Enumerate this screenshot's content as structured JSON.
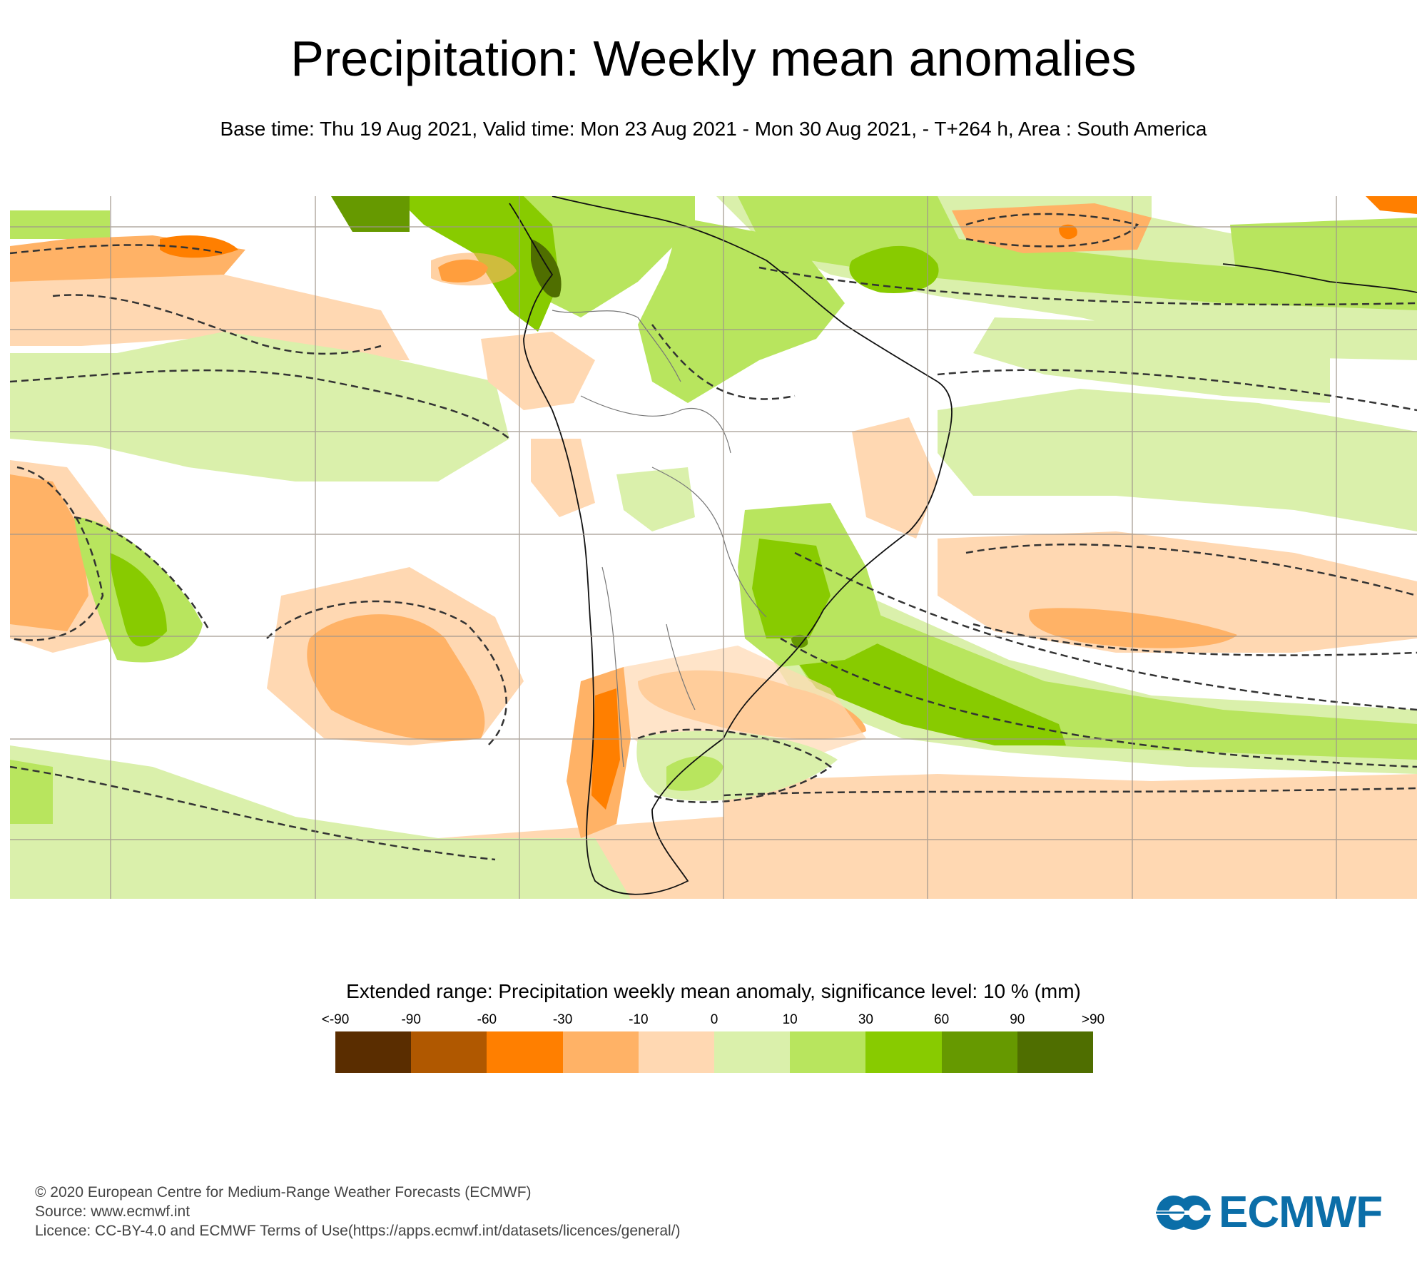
{
  "header": {
    "title": "Precipitation: Weekly mean anomalies",
    "subtitle": "Base time: Thu 19 Aug 2021, Valid time: Mon 23 Aug 2021 - Mon 30 Aug 2021, - T+264 h, Area : South America"
  },
  "map": {
    "area": "South America",
    "variable": "Precipitation weekly mean anomaly",
    "significance_contour": "dashed"
  },
  "legend": {
    "title": "Extended range: Precipitation weekly mean anomaly, significance level: 10 % (mm)",
    "labels": [
      "<-90",
      "-90",
      "-60",
      "-30",
      "-10",
      "0",
      "10",
      "30",
      "60",
      "90",
      ">90"
    ],
    "colors": [
      "#5a2d00",
      "#b05800",
      "#ff7f00",
      "#ffb266",
      "#ffd8b2",
      "#daf0ab",
      "#b8e55e",
      "#88cb00",
      "#669900",
      "#4f6e00"
    ]
  },
  "footer": {
    "copyright": "© 2020 European Centre for Medium-Range Weather Forecasts (ECMWF)",
    "source": "Source: www.ecmwf.int",
    "licence": "Licence: CC-BY-4.0 and ECMWF Terms of Use(https://apps.ecmwf.int/datasets/licences/general/)"
  },
  "logo": {
    "text": "ECMWF",
    "color": "#0b6ea8"
  }
}
